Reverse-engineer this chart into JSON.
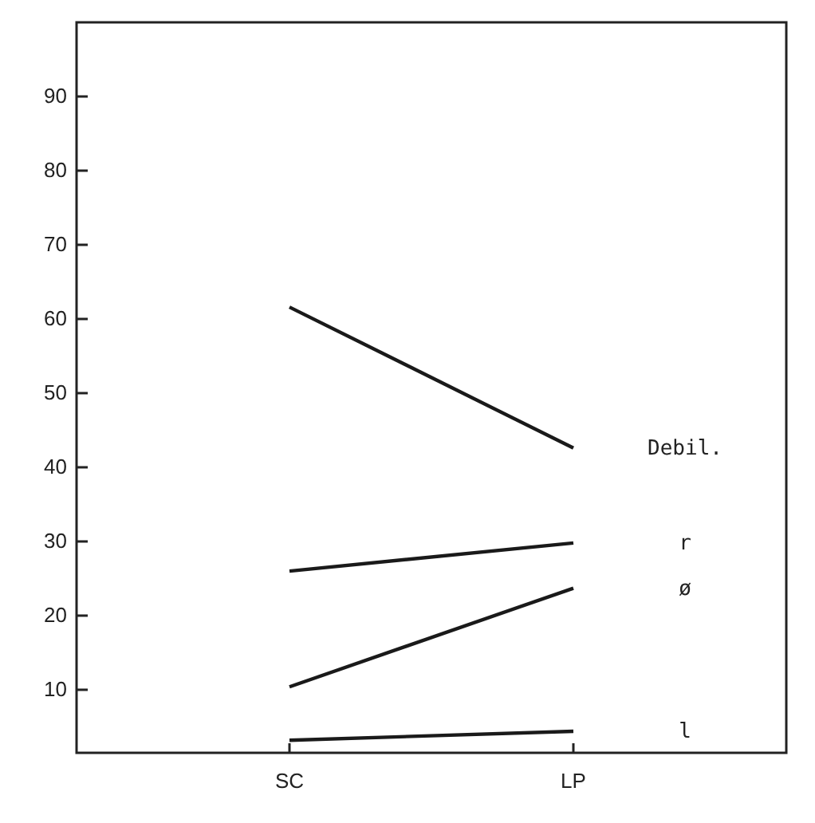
{
  "chart_data": {
    "type": "line",
    "categories": [
      "SC",
      "LP"
    ],
    "series": [
      {
        "name": "Debil.",
        "color": "#1a1a1a",
        "values": [
          61.6,
          42.6
        ]
      },
      {
        "name": "r",
        "color": "#1a1a1a",
        "values": [
          26,
          29.8
        ]
      },
      {
        "name": "ø",
        "color": "#1a1a1a",
        "values": [
          10.4,
          23.7
        ]
      },
      {
        "name": "l",
        "color": "#1a1a1a",
        "values": [
          3.2,
          4.4
        ]
      }
    ],
    "ylim": [
      1.5,
      100
    ],
    "yticks": [
      10,
      20,
      30,
      40,
      50,
      60,
      70,
      80,
      90
    ],
    "grid": false,
    "legend": false,
    "marker": "none",
    "line_style": "solid"
  }
}
